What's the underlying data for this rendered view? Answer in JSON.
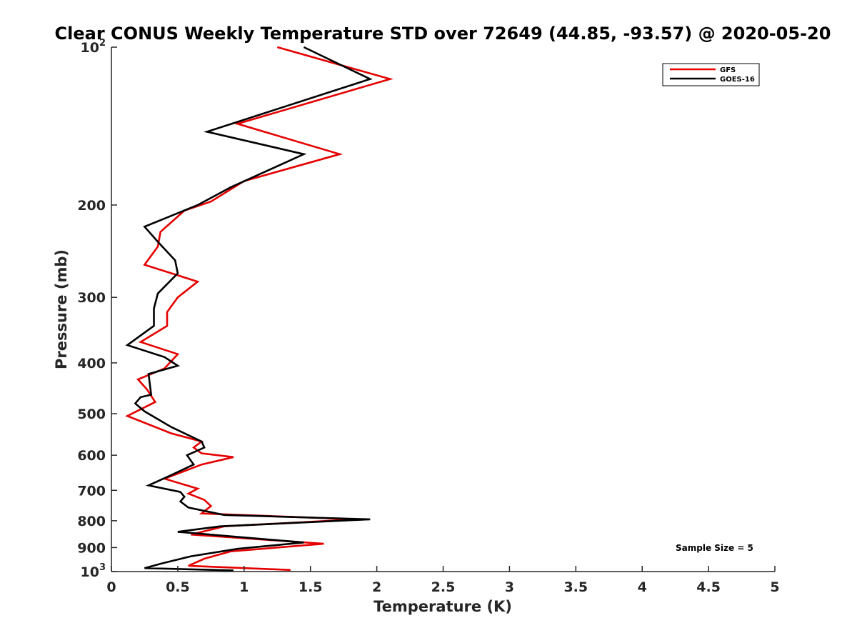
{
  "chart_data": {
    "type": "line",
    "title": "Clear CONUS Weekly Temperature STD over 72649 (44.85, -93.57) @ 2020-05-20",
    "xlabel": "Temperature (K)",
    "ylabel": "Pressure (mb)",
    "xlim": [
      0,
      5
    ],
    "ylim": [
      100,
      1000
    ],
    "y_scale": "log",
    "y_reversed": true,
    "grid": false,
    "legend_position": "top-right",
    "x_ticks": [
      {
        "value": 0,
        "label": "0"
      },
      {
        "value": 0.5,
        "label": "0.5"
      },
      {
        "value": 1,
        "label": "1"
      },
      {
        "value": 1.5,
        "label": "1.5"
      },
      {
        "value": 2,
        "label": "2"
      },
      {
        "value": 2.5,
        "label": "2.5"
      },
      {
        "value": 3,
        "label": "3"
      },
      {
        "value": 3.5,
        "label": "3.5"
      },
      {
        "value": 4,
        "label": "4"
      },
      {
        "value": 4.5,
        "label": "4.5"
      },
      {
        "value": 5,
        "label": "5"
      }
    ],
    "y_ticks": [
      {
        "value": 100,
        "base": "10",
        "exp": "2"
      },
      {
        "value": 200,
        "label": "200"
      },
      {
        "value": 300,
        "label": "300"
      },
      {
        "value": 400,
        "label": "400"
      },
      {
        "value": 500,
        "label": "500"
      },
      {
        "value": 600,
        "label": "600"
      },
      {
        "value": 700,
        "label": "700"
      },
      {
        "value": 800,
        "label": "800"
      },
      {
        "value": 900,
        "label": "900"
      },
      {
        "value": 1000,
        "base": "10",
        "exp": "3"
      }
    ],
    "series": [
      {
        "name": "GFS",
        "color": "#e50000",
        "points": [
          [
            1.25,
            100
          ],
          [
            2.1,
            115
          ],
          [
            0.95,
            140
          ],
          [
            1.72,
            160
          ],
          [
            1.0,
            180
          ],
          [
            0.75,
            197
          ],
          [
            0.55,
            205
          ],
          [
            0.37,
            225
          ],
          [
            0.35,
            240
          ],
          [
            0.25,
            260
          ],
          [
            0.65,
            280
          ],
          [
            0.5,
            300
          ],
          [
            0.42,
            320
          ],
          [
            0.42,
            340
          ],
          [
            0.22,
            365
          ],
          [
            0.5,
            385
          ],
          [
            0.4,
            410
          ],
          [
            0.2,
            430
          ],
          [
            0.27,
            450
          ],
          [
            0.33,
            475
          ],
          [
            0.12,
            505
          ],
          [
            0.45,
            545
          ],
          [
            0.68,
            565
          ],
          [
            0.62,
            580
          ],
          [
            0.68,
            595
          ],
          [
            0.92,
            605
          ],
          [
            0.68,
            625
          ],
          [
            0.4,
            665
          ],
          [
            0.65,
            695
          ],
          [
            0.58,
            710
          ],
          [
            0.7,
            730
          ],
          [
            0.75,
            750
          ],
          [
            0.68,
            775
          ],
          [
            1.85,
            795
          ],
          [
            0.85,
            820
          ],
          [
            0.6,
            850
          ],
          [
            1.6,
            885
          ],
          [
            0.9,
            915
          ],
          [
            0.7,
            945
          ],
          [
            0.58,
            975
          ],
          [
            1.35,
            993
          ]
        ]
      },
      {
        "name": "GOES-16",
        "color": "#000000",
        "points": [
          [
            1.45,
            100
          ],
          [
            1.95,
            115
          ],
          [
            0.72,
            145
          ],
          [
            1.45,
            160
          ],
          [
            0.9,
            185
          ],
          [
            0.65,
            200
          ],
          [
            0.25,
            220
          ],
          [
            0.35,
            235
          ],
          [
            0.48,
            255
          ],
          [
            0.5,
            270
          ],
          [
            0.35,
            295
          ],
          [
            0.32,
            315
          ],
          [
            0.32,
            340
          ],
          [
            0.12,
            370
          ],
          [
            0.4,
            390
          ],
          [
            0.5,
            405
          ],
          [
            0.28,
            420
          ],
          [
            0.3,
            460
          ],
          [
            0.22,
            465
          ],
          [
            0.18,
            478
          ],
          [
            0.25,
            495
          ],
          [
            0.45,
            530
          ],
          [
            0.68,
            565
          ],
          [
            0.7,
            580
          ],
          [
            0.57,
            600
          ],
          [
            0.62,
            625
          ],
          [
            0.45,
            655
          ],
          [
            0.28,
            685
          ],
          [
            0.52,
            705
          ],
          [
            0.55,
            720
          ],
          [
            0.52,
            735
          ],
          [
            0.58,
            755
          ],
          [
            0.85,
            780
          ],
          [
            1.95,
            795
          ],
          [
            0.82,
            820
          ],
          [
            0.5,
            840
          ],
          [
            1.45,
            880
          ],
          [
            0.95,
            905
          ],
          [
            0.6,
            935
          ],
          [
            0.38,
            965
          ],
          [
            0.25,
            985
          ],
          [
            0.92,
            995
          ]
        ]
      }
    ],
    "annotation": "Sample Size = 5"
  }
}
